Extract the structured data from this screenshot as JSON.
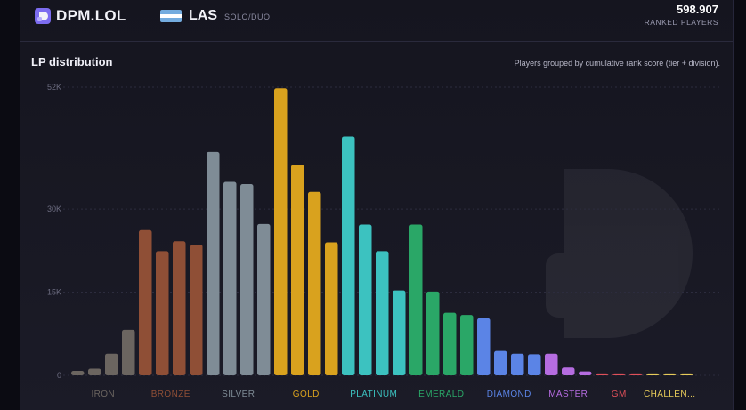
{
  "header": {
    "brand": "DPM.LOL",
    "region_code": "LAS",
    "queue": "SOLO/DUO",
    "players_count": "598.907",
    "players_label": "RANKED PLAYERS"
  },
  "chart_header": {
    "title": "LP distribution",
    "subtitle": "Players grouped by cumulative rank score (tier + division)."
  },
  "chart_data": {
    "type": "bar",
    "title": "LP distribution",
    "ylim": [
      0,
      52000
    ],
    "yticks": [
      {
        "value": 0,
        "label": "0"
      },
      {
        "value": 15000,
        "label": "15K"
      },
      {
        "value": 30000,
        "label": "30K"
      },
      {
        "value": 52000,
        "label": "52K"
      }
    ],
    "tiers": [
      {
        "name": "IRON",
        "color": "#6b6560",
        "values": [
          800,
          1200,
          3900,
          8200
        ]
      },
      {
        "name": "BRONZE",
        "color": "#8f4f36",
        "values": [
          26200,
          22400,
          24200,
          23600
        ]
      },
      {
        "name": "SILVER",
        "color": "#7f8c96",
        "values": [
          40300,
          34900,
          34500,
          27300
        ]
      },
      {
        "name": "GOLD",
        "color": "#d9a21e",
        "values": [
          51800,
          38000,
          33100,
          24000
        ]
      },
      {
        "name": "PLATINUM",
        "color": "#3cc2c0",
        "values": [
          43100,
          27200,
          22400,
          15300
        ]
      },
      {
        "name": "EMERALD",
        "color": "#2aa767",
        "values": [
          27200,
          15100,
          11300,
          10900
        ]
      },
      {
        "name": "DIAMOND",
        "color": "#5b84e6",
        "values": [
          10300,
          4400,
          3900,
          3800
        ]
      },
      {
        "name": "MASTER",
        "color": "#b56ce0",
        "values": [
          3900,
          1400,
          700
        ]
      },
      {
        "name": "GM",
        "color": "#e0505a",
        "values": [
          350,
          350,
          350
        ]
      },
      {
        "name": "CHALLEN...",
        "color": "#e8cc5a",
        "values": [
          350,
          350,
          350
        ]
      }
    ]
  }
}
